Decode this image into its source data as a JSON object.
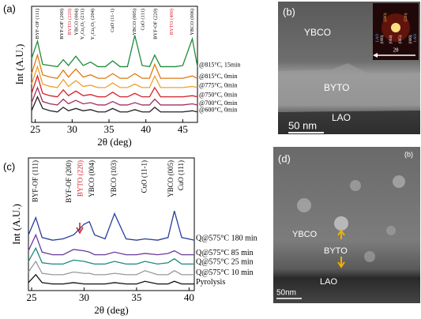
{
  "chart_data": [
    {
      "type": "line",
      "panel": "(a)",
      "x_label": "2θ (deg)",
      "y_label": "Int (A.U.)",
      "xlim": [
        24.5,
        47
      ],
      "xticks": [
        25,
        30,
        35,
        40,
        45
      ],
      "ylim": [
        0,
        100
      ],
      "x": [
        24.5,
        25.3,
        26,
        27,
        28,
        28.8,
        29.5,
        30.5,
        31.5,
        32.5,
        33.5,
        34.5,
        35.5,
        36.5,
        37.5,
        38.5,
        39.5,
        40.5,
        41.2,
        42,
        43,
        44,
        45,
        46.3,
        47
      ],
      "series": [
        {
          "name": "@815°C, 15min",
          "color": "#1f8a3a",
          "values": [
            55,
            70,
            50,
            49,
            48,
            54,
            49,
            57,
            49,
            52,
            48,
            48,
            53,
            48,
            48,
            75,
            49,
            48,
            58,
            48,
            48,
            48,
            49,
            72,
            48
          ]
        },
        {
          "name": "@815°C, 0min",
          "color": "#e07a10",
          "values": [
            42,
            58,
            41,
            39,
            38,
            45,
            39,
            46,
            39,
            41,
            38,
            38,
            42,
            38,
            38,
            42,
            38,
            38,
            50,
            38,
            38,
            38,
            38,
            40,
            38
          ]
        },
        {
          "name": "@775°C, 0min",
          "color": "#f0a030",
          "values": [
            33,
            48,
            33,
            31,
            30,
            37,
            31,
            36,
            31,
            32,
            30,
            30,
            34,
            30,
            30,
            33,
            30,
            30,
            40,
            30,
            30,
            30,
            30,
            31,
            30
          ]
        },
        {
          "name": "@750°C, 0min",
          "color": "#d4202a",
          "values": [
            25,
            40,
            25,
            23,
            22,
            28,
            23,
            27,
            23,
            24,
            22,
            22,
            26,
            22,
            22,
            25,
            22,
            22,
            30,
            22,
            22,
            22,
            22,
            23,
            22
          ]
        },
        {
          "name": "@700°C, 0min",
          "color": "#a0305a",
          "values": [
            17,
            30,
            18,
            16,
            15,
            20,
            16,
            19,
            16,
            17,
            15,
            15,
            18,
            15,
            15,
            17,
            15,
            15,
            20,
            15,
            15,
            15,
            15,
            16,
            15
          ]
        },
        {
          "name": "@600°C, 0min",
          "color": "#222222",
          "values": [
            10,
            22,
            12,
            10,
            9,
            13,
            10,
            12,
            10,
            11,
            9,
            9,
            12,
            9,
            9,
            11,
            9,
            9,
            13,
            9,
            9,
            9,
            9,
            10,
            9
          ]
        }
      ],
      "annotations": [
        {
          "text": "BYF-OF (111)",
          "x": 25.3,
          "color": "#000000"
        },
        {
          "text": "BYF-OF (200)",
          "x": 28.6,
          "color": "#000000"
        },
        {
          "text": "BYTO (220)",
          "x": 29.7,
          "color": "#d4202a"
        },
        {
          "text": "YBCO (004)",
          "x": 30.6,
          "color": "#000000"
        },
        {
          "text": "Y₂Cu₂O₅ (211)",
          "x": 31.4,
          "color": "#000000"
        },
        {
          "text": "Y₂Cu₂O₅ (204)",
          "x": 32.8,
          "color": "#000000"
        },
        {
          "text": "CuO (11-1)",
          "x": 35.5,
          "color": "#000000"
        },
        {
          "text": "YBCO (005)",
          "x": 38.5,
          "color": "#000000"
        },
        {
          "text": "CuO (111)",
          "x": 39.6,
          "color": "#000000"
        },
        {
          "text": "BYF-OF (220)",
          "x": 41.3,
          "color": "#000000"
        },
        {
          "text": "BYTO (400)",
          "x": 43.5,
          "color": "#d4202a"
        },
        {
          "text": "YBCO (006)",
          "x": 46.3,
          "color": "#000000"
        }
      ]
    },
    {
      "type": "line",
      "panel": "(c)",
      "x_label": "2θ (deg)",
      "y_label": "Int (A.U.)",
      "xlim": [
        24.7,
        40.5
      ],
      "xticks": [
        25,
        30,
        35,
        40
      ],
      "ylim": [
        0,
        100
      ],
      "x": [
        24.7,
        25.4,
        26,
        27,
        28,
        29,
        30,
        30.5,
        31,
        32,
        32.9,
        34,
        35,
        35.8,
        37,
        38,
        38.6,
        39.3,
        40.5
      ],
      "series": [
        {
          "name": "Q@575°C 180 min",
          "color": "#2a3f9a",
          "values": [
            42,
            55,
            40,
            38,
            39,
            42,
            50,
            52,
            42,
            39,
            58,
            39,
            38,
            39,
            38,
            40,
            60,
            40,
            38
          ]
        },
        {
          "name": "Q@575°C 85 min",
          "color": "#6a3a9a",
          "values": [
            30,
            42,
            29,
            27,
            27,
            31,
            30,
            29,
            27,
            27,
            29,
            27,
            27,
            28,
            27,
            28,
            30,
            27,
            27
          ]
        },
        {
          "name": "Q@575°C 25 min",
          "color": "#1a8a7a",
          "values": [
            22,
            32,
            21,
            20,
            20,
            23,
            22,
            21,
            20,
            20,
            22,
            20,
            20,
            22,
            20,
            21,
            24,
            20,
            20
          ]
        },
        {
          "name": "Q@575°C 10 min",
          "color": "#999999",
          "values": [
            14,
            22,
            13,
            12,
            12,
            14,
            13,
            13,
            12,
            12,
            13,
            12,
            12,
            15,
            12,
            12,
            15,
            12,
            12
          ]
        },
        {
          "name": "Pyrolysis",
          "color": "#111111",
          "values": [
            6,
            12,
            6,
            5,
            5,
            6,
            5,
            5,
            5,
            5,
            6,
            5,
            5,
            7,
            5,
            5,
            7,
            5,
            5
          ]
        }
      ],
      "annotations": [
        {
          "text": "BYF-OF (111)",
          "x": 25.4,
          "color": "#000000"
        },
        {
          "text": "BYF-OF (200)",
          "x": 28.6,
          "color": "#000000"
        },
        {
          "text": "BYTO (220)",
          "x": 29.7,
          "color": "#d4202a"
        },
        {
          "text": "YBCO (004)",
          "x": 30.8,
          "color": "#000000"
        },
        {
          "text": "YBCO (103)",
          "x": 32.9,
          "color": "#000000"
        },
        {
          "text": "CuO (11-1)",
          "x": 35.8,
          "color": "#000000"
        },
        {
          "text": "YBCO (005)",
          "x": 38.3,
          "color": "#000000"
        },
        {
          "text": "CuO (111)",
          "x": 39.3,
          "color": "#000000"
        }
      ]
    }
  ],
  "images": [
    {
      "panel": "(b)",
      "labels": [
        "YBCO",
        "BYTO",
        "LAO"
      ],
      "scale_bar": "50 nm",
      "inset": {
        "axis": "2θ",
        "peaks": [
          "(200)",
          "(220)",
          "(006)",
          "(004)",
          "(005)",
          "(006)"
        ],
        "tags": [
          "LAO",
          "LAO"
        ]
      }
    },
    {
      "panel": "(d)",
      "corner": "(b)",
      "labels": [
        "YBCO",
        "BYTO",
        "LAO"
      ],
      "scale_bar": "50nm"
    }
  ]
}
